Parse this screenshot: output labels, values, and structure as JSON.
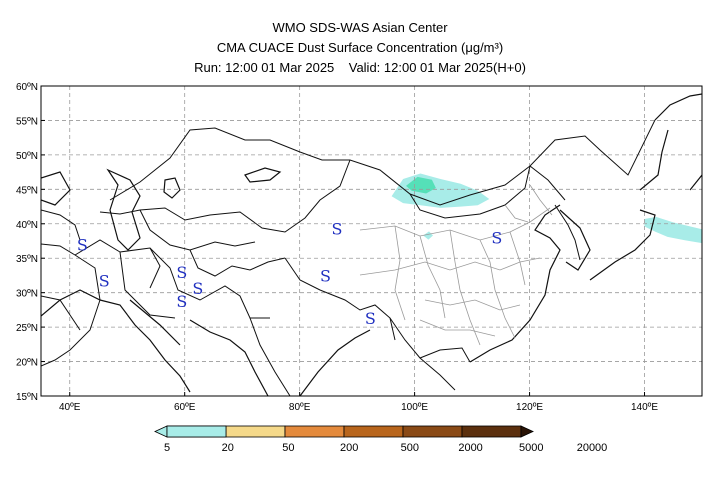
{
  "header": {
    "line1": "WMO SDS-WAS Asian Center",
    "line2": "CMA CUACE Dust Surface Concentration (μg/m³)",
    "line3": "Run: 12:00 01 Mar 2025    Valid: 12:00 01 Mar 2025(H+0)"
  },
  "map": {
    "lon_range": [
      35,
      150
    ],
    "lat_range": [
      15,
      60
    ],
    "lon_ticks": [
      {
        "value": 40,
        "label": "40ºE"
      },
      {
        "value": 60,
        "label": "60ºE"
      },
      {
        "value": 80,
        "label": "80ºE"
      },
      {
        "value": 100,
        "label": "100ºE"
      },
      {
        "value": 120,
        "label": "120ºE"
      },
      {
        "value": 140,
        "label": "140ºE"
      }
    ],
    "lat_ticks": [
      {
        "value": 60,
        "label": "60ºN"
      },
      {
        "value": 55,
        "label": "55ºN"
      },
      {
        "value": 50,
        "label": "50ºN"
      },
      {
        "value": 45,
        "label": "45ºN"
      },
      {
        "value": 40,
        "label": "40ºN"
      },
      {
        "value": 35,
        "label": "35ºN"
      },
      {
        "value": 30,
        "label": "30ºN"
      },
      {
        "value": 25,
        "label": "25ºN"
      },
      {
        "value": 20,
        "label": "20ºN"
      },
      {
        "value": 15,
        "label": "15ºN"
      }
    ],
    "grid": true,
    "storm_symbol": "S",
    "storm_markers": [
      {
        "lon": 42.2,
        "lat": 37.0
      },
      {
        "lon": 46.0,
        "lat": 31.8
      },
      {
        "lon": 59.5,
        "lat": 33.0
      },
      {
        "lon": 59.5,
        "lat": 28.8
      },
      {
        "lon": 62.3,
        "lat": 30.7
      },
      {
        "lon": 86.5,
        "lat": 39.3
      },
      {
        "lon": 84.5,
        "lat": 32.5
      },
      {
        "lon": 92.3,
        "lat": 26.3
      },
      {
        "lon": 114.3,
        "lat": 38.0
      }
    ],
    "dust_areas": [
      {
        "category": "5-20",
        "color": "#a8ece8",
        "points": [
          [
            96,
            44
          ],
          [
            98,
            46.5
          ],
          [
            101,
            47.3
          ],
          [
            104.5,
            46.5
          ],
          [
            108,
            45.8
          ],
          [
            111,
            44.8
          ],
          [
            113,
            43.6
          ],
          [
            111,
            42.7
          ],
          [
            108,
            42.5
          ],
          [
            104.5,
            42.3
          ],
          [
            101,
            42.7
          ],
          [
            98,
            43
          ]
        ]
      },
      {
        "category": "20-50",
        "color": "#55e0b8",
        "points": [
          [
            98.5,
            45.5
          ],
          [
            100.5,
            46.8
          ],
          [
            103,
            46.4
          ],
          [
            103.7,
            45.2
          ],
          [
            102,
            44.4
          ],
          [
            99.5,
            44.8
          ]
        ]
      },
      {
        "category": "5-20",
        "color": "#a8ece8",
        "points": [
          [
            101.5,
            38.3
          ],
          [
            102.5,
            38.9
          ],
          [
            103.2,
            38.3
          ],
          [
            102.4,
            37.7
          ]
        ]
      },
      {
        "category": "5-20",
        "color": "#a8ece8",
        "points": [
          [
            140,
            40.7
          ],
          [
            142,
            41
          ],
          [
            145,
            40.2
          ],
          [
            148,
            39.6
          ],
          [
            150,
            39.2
          ],
          [
            150,
            37.2
          ],
          [
            147,
            37.6
          ],
          [
            144,
            38.1
          ],
          [
            142,
            38.8
          ],
          [
            140,
            39.6
          ]
        ]
      }
    ]
  },
  "colorbar": {
    "colors": [
      "#a8ece8",
      "#55e0b8",
      "#f5d98a",
      "#e48a3c",
      "#b8651c",
      "#8a4a16",
      "#5c300e",
      "#2a1406"
    ],
    "labels": [
      "5",
      "20",
      "50",
      "200",
      "500",
      "2000",
      "5000",
      "20000"
    ]
  }
}
